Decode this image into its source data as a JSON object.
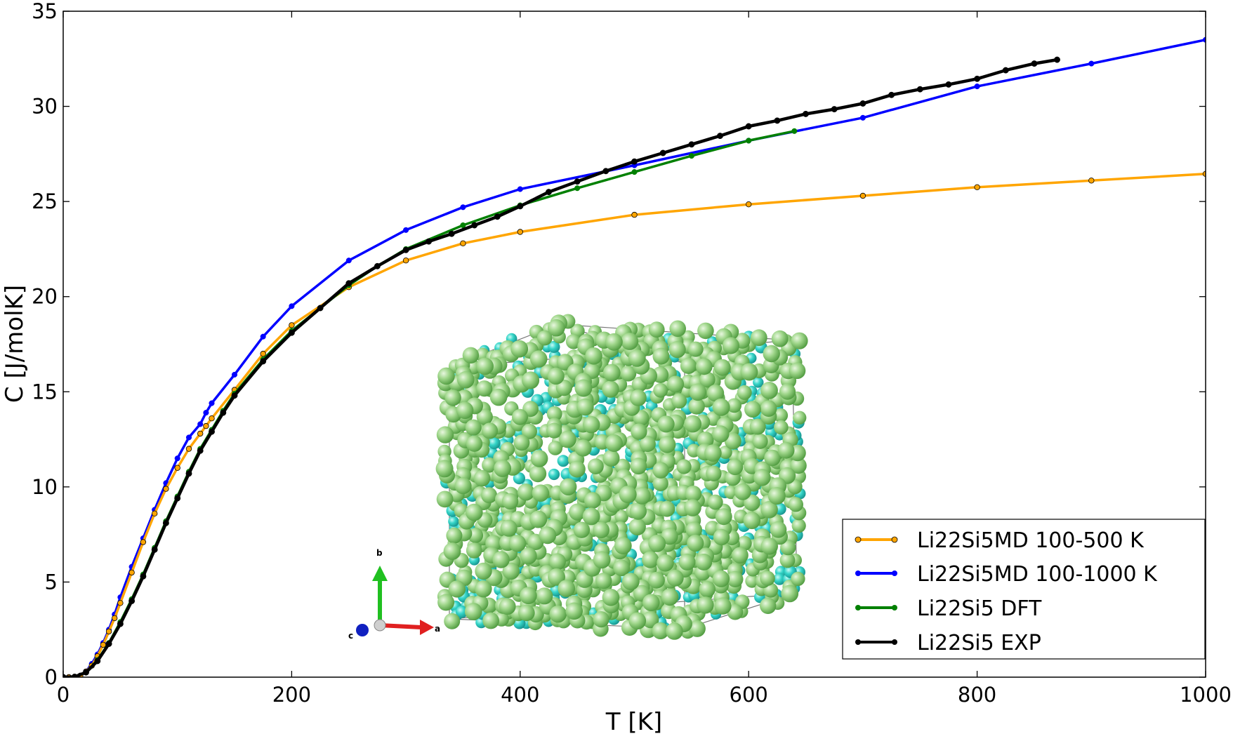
{
  "chart_data": {
    "type": "line",
    "title": "",
    "xlabel": "T [K]",
    "ylabel": "C [J/molK]",
    "xlim": [
      0,
      1000
    ],
    "ylim": [
      0,
      35
    ],
    "xticks": [
      0,
      200,
      400,
      600,
      800,
      1000
    ],
    "yticks": [
      0,
      5,
      10,
      15,
      20,
      25,
      30,
      35
    ],
    "legend_position": "lower-right",
    "series": [
      {
        "name": "Li22Si5MD 100-500 K",
        "color": "#FFA500",
        "marker": "circle",
        "x": [
          0,
          5,
          10,
          15,
          20,
          25,
          30,
          35,
          40,
          45,
          50,
          60,
          70,
          80,
          90,
          100,
          110,
          120,
          125,
          130,
          150,
          175,
          200,
          250,
          300,
          350,
          400,
          500,
          600,
          700,
          800,
          900,
          1000
        ],
        "y": [
          0,
          0,
          0.02,
          0.08,
          0.3,
          0.6,
          1.1,
          1.7,
          2.4,
          3.1,
          3.9,
          5.5,
          7.1,
          8.6,
          9.9,
          11.0,
          12.0,
          12.8,
          13.2,
          13.6,
          15.1,
          17.0,
          18.5,
          20.5,
          21.9,
          22.8,
          23.4,
          24.3,
          24.85,
          25.3,
          25.75,
          26.1,
          26.45
        ]
      },
      {
        "name": "Li22Si5MD 100-1000 K",
        "color": "#0000FF",
        "marker": "circle",
        "x": [
          0,
          5,
          10,
          15,
          20,
          25,
          30,
          35,
          40,
          45,
          50,
          60,
          70,
          80,
          90,
          100,
          110,
          120,
          125,
          130,
          150,
          175,
          200,
          250,
          300,
          350,
          400,
          500,
          600,
          700,
          800,
          900,
          1000
        ],
        "y": [
          0,
          0,
          0.02,
          0.08,
          0.3,
          0.7,
          1.2,
          1.8,
          2.5,
          3.3,
          4.2,
          5.8,
          7.3,
          8.8,
          10.2,
          11.5,
          12.6,
          13.3,
          13.9,
          14.4,
          15.9,
          17.9,
          19.5,
          21.9,
          23.5,
          24.7,
          25.65,
          26.9,
          28.2,
          29.4,
          31.05,
          32.25,
          33.5
        ]
      },
      {
        "name": "Li22Si5 DFT",
        "color": "#008000",
        "marker": "circle",
        "x": [
          0,
          10,
          20,
          30,
          40,
          50,
          60,
          70,
          80,
          90,
          100,
          110,
          120,
          130,
          140,
          150,
          175,
          200,
          225,
          250,
          275,
          300,
          350,
          400,
          450,
          500,
          550,
          600,
          640
        ],
        "y": [
          0,
          0.02,
          0.25,
          0.9,
          1.8,
          2.9,
          4.1,
          5.4,
          6.8,
          8.2,
          9.5,
          10.8,
          12.0,
          13.0,
          14.0,
          14.9,
          16.7,
          18.2,
          19.4,
          20.6,
          21.6,
          22.5,
          23.75,
          24.8,
          25.7,
          26.55,
          27.4,
          28.2,
          28.7
        ]
      },
      {
        "name": "Li22Si5 EXP",
        "color": "#000000",
        "marker": "circle",
        "x": [
          0,
          10,
          20,
          30,
          40,
          50,
          60,
          70,
          80,
          90,
          100,
          110,
          120,
          130,
          140,
          150,
          175,
          200,
          225,
          250,
          275,
          300,
          320,
          340,
          360,
          380,
          400,
          425,
          450,
          475,
          500,
          525,
          550,
          575,
          600,
          625,
          650,
          675,
          700,
          725,
          750,
          775,
          800,
          825,
          850,
          870
        ],
        "y": [
          0,
          0.02,
          0.25,
          0.85,
          1.75,
          2.8,
          4.0,
          5.3,
          6.7,
          8.1,
          9.4,
          10.7,
          11.9,
          12.9,
          13.9,
          14.8,
          16.6,
          18.1,
          19.4,
          20.7,
          21.6,
          22.45,
          22.9,
          23.3,
          23.75,
          24.2,
          24.75,
          25.5,
          26.05,
          26.6,
          27.1,
          27.55,
          28.0,
          28.45,
          28.95,
          29.25,
          29.6,
          29.85,
          30.15,
          30.6,
          30.9,
          31.15,
          31.45,
          31.9,
          32.25,
          32.45
        ]
      }
    ]
  },
  "inset": {
    "axis_labels": {
      "a": "a",
      "b": "b",
      "c": "c"
    },
    "colors": {
      "li_atom": "#8FD07A",
      "si_atom": "#2FD4C8",
      "frame": "#777777",
      "axis_a": "#E02020",
      "axis_b": "#20C020",
      "axis_c": "#1020C0"
    }
  }
}
